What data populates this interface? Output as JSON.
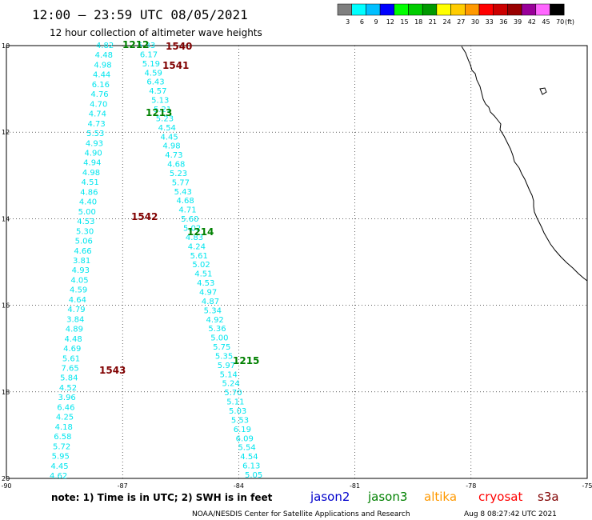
{
  "header": {
    "title": "12:00 – 23:59 UTC 08/05/2021",
    "subtitle": "12 hour collection of altimeter wave heights"
  },
  "legend": {
    "labels": [
      "3",
      "6",
      "9",
      "12",
      "15",
      "18",
      "21",
      "24",
      "27",
      "30",
      "33",
      "36",
      "39",
      "42",
      "45",
      "70"
    ],
    "unit": "(ft)",
    "colors": [
      "#7f7f7f",
      "#00ffff",
      "#00bfff",
      "#0000ff",
      "#00ff00",
      "#00cc00",
      "#009900",
      "#ffff00",
      "#ffcc00",
      "#ff9900",
      "#ff0000",
      "#cc0000",
      "#990000",
      "#990099",
      "#ff66ff",
      "#000000"
    ]
  },
  "map": {
    "lat_ticks": [
      "10",
      "12",
      "14",
      "16",
      "18",
      "20"
    ],
    "lon_ticks": [
      "-90",
      "-87",
      "-84",
      "-81",
      "-78",
      "-75"
    ],
    "lat_range": [
      10,
      20
    ],
    "lon_range": [
      -90,
      -75
    ],
    "grid": "dotted",
    "coastline_color": "#000000"
  },
  "passes": [
    {
      "label": "1212",
      "color": "#008000"
    },
    {
      "label": "1540",
      "color": "#800000"
    },
    {
      "label": "1541",
      "color": "#800000"
    },
    {
      "label": "1213",
      "color": "#008000"
    },
    {
      "label": "1542",
      "color": "#800000"
    },
    {
      "label": "1214",
      "color": "#008000"
    },
    {
      "label": "1215",
      "color": "#008000"
    },
    {
      "label": "1543",
      "color": "#800000"
    }
  ],
  "wave_heights": {
    "color": "#00e5ee",
    "track_a": [
      "4.82",
      "4.48",
      "4.98",
      "4.44",
      "6.16",
      "4.76",
      "4.70",
      "4.74",
      "4.73",
      "5.53",
      "4.93",
      "4.90",
      "4.94",
      "4.98",
      "4.51",
      "4.86",
      "4.40",
      "5.00",
      "4.53",
      "5.30",
      "5.06",
      "4.66",
      "3.81",
      "4.93",
      "4.05",
      "4.59",
      "4.64",
      "4.79",
      "3.84",
      "4.89",
      "4.48",
      "4.69",
      "5.61",
      "7.65",
      "5.84",
      "4.52",
      "3.96",
      "6.46",
      "4.25",
      "4.18",
      "6.58",
      "5.72",
      "5.95",
      "4.45",
      "4.62"
    ],
    "track_b": [
      "5.33",
      "6.17",
      "5.19",
      "4.59",
      "6.43",
      "4.57",
      "5.13",
      "5.21",
      "5.23",
      "4.54",
      "4.45",
      "4.98",
      "4.73",
      "4.68",
      "5.23",
      "5.77",
      "5.43",
      "4.68",
      "4.71",
      "5.60",
      "5.02",
      "4.83",
      "4.24",
      "5.61",
      "5.02",
      "4.51",
      "4.53",
      "4.97",
      "4.87",
      "5.34",
      "4.92",
      "5.36",
      "5.00",
      "5.75",
      "5.35",
      "5.97",
      "5.14",
      "5.24",
      "5.70",
      "5.11",
      "5.03",
      "5.53",
      "6.19",
      "6.09",
      "5.54",
      "4.54",
      "6.13",
      "5.05"
    ]
  },
  "footer": {
    "note": "note:  1) Time is in UTC;  2) SWH is in feet",
    "satellites": [
      {
        "name": "jason2",
        "color": "#0000cc"
      },
      {
        "name": "jason3",
        "color": "#008000"
      },
      {
        "name": "altika",
        "color": "#ff9900"
      },
      {
        "name": "cryosat",
        "color": "#ff0000"
      },
      {
        "name": "s3a",
        "color": "#800000"
      }
    ],
    "credit": "NOAA/NESDIS Center for Satellite Applications and Research",
    "timestamp": "Aug  8 08:27:42 UTC 2021"
  }
}
